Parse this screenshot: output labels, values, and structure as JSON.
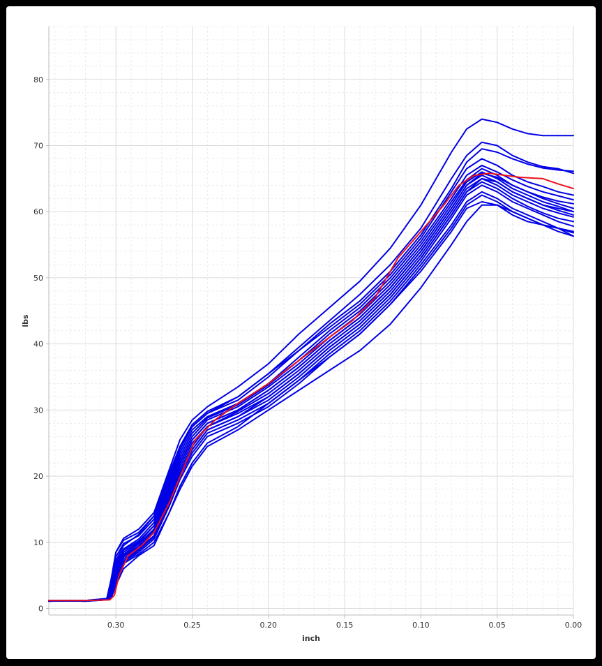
{
  "chart_data": {
    "type": "line",
    "title": "",
    "xlabel": "inch",
    "ylabel": "lbs",
    "x_reversed": true,
    "xlim": [
      0.0,
      0.344
    ],
    "ylim": [
      -1,
      88
    ],
    "x_ticks": [
      0.3,
      0.25,
      0.2,
      0.15,
      0.1,
      0.05,
      0.0
    ],
    "x_tick_labels": [
      "0.30",
      "0.25",
      "0.20",
      "0.15",
      "0.10",
      "0.05",
      "0.00"
    ],
    "y_ticks": [
      0,
      10,
      20,
      30,
      40,
      50,
      60,
      70,
      80
    ],
    "y_tick_labels": [
      "0",
      "10",
      "20",
      "30",
      "40",
      "50",
      "60",
      "70",
      "80"
    ],
    "grid": true,
    "legend": "none",
    "colors": {
      "series": "#0000e6",
      "highlight": "#e8101c"
    },
    "series": [
      {
        "x": [
          0.344,
          0.32,
          0.306,
          0.303,
          0.3,
          0.295,
          0.285,
          0.275,
          0.265,
          0.258,
          0.25,
          0.24,
          0.22,
          0.2,
          0.18,
          0.16,
          0.14,
          0.12,
          0.1,
          0.08,
          0.07,
          0.06,
          0.05,
          0.04,
          0.03,
          0.02,
          0.01,
          0.0
        ],
        "y": [
          1.2,
          1.2,
          1.4,
          4.5,
          8.5,
          10.6,
          12.0,
          14.5,
          21.0,
          25.5,
          28.5,
          30.5,
          33.5,
          37.0,
          41.5,
          45.5,
          49.5,
          54.5,
          61.0,
          69.0,
          72.5,
          74.0,
          73.5,
          72.5,
          71.8,
          71.5,
          71.5,
          71.5
        ]
      },
      {
        "x": [
          0.344,
          0.32,
          0.306,
          0.303,
          0.3,
          0.295,
          0.285,
          0.275,
          0.265,
          0.258,
          0.25,
          0.24,
          0.22,
          0.2,
          0.18,
          0.16,
          0.14,
          0.12,
          0.1,
          0.08,
          0.07,
          0.06,
          0.05,
          0.04,
          0.03,
          0.02,
          0.01,
          0.0
        ],
        "y": [
          1.2,
          1.2,
          1.5,
          4.5,
          8.5,
          10.3,
          11.5,
          14.0,
          20.0,
          24.5,
          27.8,
          29.8,
          32.0,
          35.5,
          39.5,
          43.5,
          47.5,
          52.0,
          57.5,
          65.0,
          68.5,
          70.5,
          70.0,
          68.5,
          67.5,
          66.8,
          66.5,
          65.8
        ]
      },
      {
        "x": [
          0.344,
          0.32,
          0.306,
          0.303,
          0.3,
          0.295,
          0.285,
          0.275,
          0.265,
          0.258,
          0.25,
          0.24,
          0.22,
          0.2,
          0.18,
          0.16,
          0.14,
          0.12,
          0.1,
          0.08,
          0.07,
          0.06,
          0.05,
          0.04,
          0.03,
          0.02,
          0.01,
          0.0
        ],
        "y": [
          1.1,
          1.2,
          1.4,
          3.8,
          7.8,
          9.8,
          11.0,
          13.5,
          19.5,
          24.0,
          27.5,
          29.5,
          31.5,
          35.0,
          39.0,
          43.0,
          46.5,
          51.0,
          56.5,
          63.5,
          67.5,
          69.5,
          69.0,
          68.0,
          67.2,
          66.6,
          66.3,
          66.1
        ]
      },
      {
        "x": [
          0.344,
          0.32,
          0.306,
          0.303,
          0.3,
          0.295,
          0.285,
          0.275,
          0.265,
          0.258,
          0.25,
          0.24,
          0.22,
          0.2,
          0.18,
          0.16,
          0.14,
          0.12,
          0.1,
          0.08,
          0.07,
          0.06,
          0.05,
          0.04,
          0.03,
          0.02,
          0.01,
          0.0
        ],
        "y": [
          1.2,
          1.1,
          1.4,
          3.5,
          7.2,
          9.5,
          11.2,
          14.0,
          20.5,
          24.5,
          27.5,
          29.5,
          32.0,
          35.5,
          39.0,
          42.5,
          46.0,
          50.5,
          56.0,
          63.0,
          66.5,
          68.0,
          67.0,
          65.5,
          64.5,
          63.8,
          63.0,
          62.5
        ]
      },
      {
        "x": [
          0.344,
          0.32,
          0.306,
          0.303,
          0.3,
          0.295,
          0.285,
          0.275,
          0.265,
          0.258,
          0.25,
          0.24,
          0.22,
          0.2,
          0.18,
          0.16,
          0.14,
          0.12,
          0.1,
          0.08,
          0.07,
          0.06,
          0.05,
          0.04,
          0.03,
          0.02,
          0.01,
          0.0
        ],
        "y": [
          1.2,
          1.2,
          1.4,
          3.2,
          6.8,
          9.0,
          10.5,
          13.0,
          19.0,
          23.5,
          27.0,
          29.0,
          31.0,
          34.0,
          38.0,
          42.0,
          45.5,
          50.0,
          55.5,
          62.0,
          65.5,
          67.0,
          66.0,
          64.8,
          63.8,
          63.0,
          62.4,
          61.8
        ]
      },
      {
        "x": [
          0.344,
          0.32,
          0.306,
          0.303,
          0.3,
          0.295,
          0.285,
          0.275,
          0.265,
          0.258,
          0.25,
          0.24,
          0.22,
          0.2,
          0.18,
          0.16,
          0.14,
          0.12,
          0.1,
          0.08,
          0.07,
          0.06,
          0.05,
          0.04,
          0.03,
          0.02,
          0.01,
          0.0
        ],
        "y": [
          1.1,
          1.2,
          1.3,
          3.0,
          6.5,
          8.8,
          10.2,
          12.5,
          18.5,
          23.0,
          26.5,
          28.8,
          30.8,
          33.8,
          37.5,
          41.5,
          45.0,
          49.5,
          55.0,
          61.5,
          64.8,
          66.5,
          65.5,
          64.0,
          63.0,
          62.0,
          61.2,
          60.5
        ]
      },
      {
        "x": [
          0.344,
          0.32,
          0.306,
          0.303,
          0.3,
          0.295,
          0.285,
          0.275,
          0.265,
          0.258,
          0.25,
          0.24,
          0.22,
          0.2,
          0.18,
          0.16,
          0.14,
          0.12,
          0.1,
          0.08,
          0.07,
          0.06,
          0.05,
          0.04,
          0.03,
          0.02,
          0.01,
          0.0
        ],
        "y": [
          1.2,
          1.2,
          1.4,
          2.8,
          6.0,
          8.5,
          10.0,
          12.5,
          18.5,
          22.5,
          26.0,
          28.5,
          30.5,
          33.5,
          37.0,
          41.0,
          44.5,
          49.0,
          54.5,
          61.0,
          64.5,
          66.0,
          65.0,
          63.5,
          62.5,
          61.5,
          60.8,
          60.0
        ]
      },
      {
        "x": [
          0.344,
          0.32,
          0.306,
          0.303,
          0.3,
          0.295,
          0.285,
          0.275,
          0.265,
          0.258,
          0.25,
          0.24,
          0.22,
          0.2,
          0.18,
          0.16,
          0.14,
          0.12,
          0.1,
          0.08,
          0.07,
          0.06,
          0.05,
          0.04,
          0.03,
          0.02,
          0.01,
          0.0
        ],
        "y": [
          1.2,
          1.1,
          1.3,
          2.6,
          5.5,
          8.2,
          9.8,
          12.0,
          18.0,
          22.0,
          25.5,
          28.0,
          30.0,
          33.0,
          36.5,
          40.5,
          44.0,
          48.5,
          54.0,
          60.5,
          64.0,
          65.5,
          64.5,
          63.0,
          62.0,
          61.0,
          60.2,
          59.5
        ]
      },
      {
        "x": [
          0.344,
          0.32,
          0.306,
          0.303,
          0.3,
          0.295,
          0.285,
          0.275,
          0.265,
          0.258,
          0.25,
          0.24,
          0.22,
          0.2,
          0.18,
          0.16,
          0.14,
          0.12,
          0.1,
          0.08,
          0.07,
          0.06,
          0.05,
          0.04,
          0.03,
          0.02,
          0.01,
          0.0
        ],
        "y": [
          1.2,
          1.2,
          1.3,
          2.4,
          5.2,
          8.0,
          9.5,
          11.8,
          17.5,
          21.5,
          25.0,
          27.5,
          29.8,
          32.5,
          36.0,
          40.0,
          43.5,
          48.0,
          53.5,
          60.0,
          63.5,
          65.0,
          64.0,
          62.5,
          61.5,
          60.5,
          59.8,
          59.2
        ]
      },
      {
        "x": [
          0.344,
          0.32,
          0.306,
          0.303,
          0.3,
          0.295,
          0.285,
          0.275,
          0.265,
          0.258,
          0.25,
          0.24,
          0.22,
          0.2,
          0.18,
          0.16,
          0.14,
          0.12,
          0.1,
          0.08,
          0.07,
          0.06,
          0.05,
          0.04,
          0.03,
          0.02,
          0.01,
          0.0
        ],
        "y": [
          1.1,
          1.2,
          1.3,
          2.2,
          4.8,
          7.8,
          9.2,
          11.5,
          17.0,
          21.0,
          24.5,
          27.5,
          29.5,
          32.0,
          35.5,
          39.5,
          43.0,
          47.5,
          53.0,
          59.5,
          63.0,
          64.5,
          63.5,
          62.0,
          60.8,
          59.8,
          59.0,
          58.5
        ]
      },
      {
        "x": [
          0.344,
          0.32,
          0.306,
          0.303,
          0.3,
          0.295,
          0.285,
          0.275,
          0.265,
          0.258,
          0.25,
          0.24,
          0.22,
          0.2,
          0.18,
          0.16,
          0.14,
          0.12,
          0.1,
          0.08,
          0.07,
          0.06,
          0.05,
          0.04,
          0.03,
          0.02,
          0.01,
          0.0
        ],
        "y": [
          1.2,
          1.2,
          1.3,
          2.0,
          4.5,
          7.5,
          9.0,
          11.0,
          16.5,
          20.5,
          24.0,
          27.0,
          29.0,
          31.5,
          35.0,
          39.0,
          42.5,
          47.0,
          52.5,
          59.0,
          62.5,
          64.0,
          63.0,
          61.5,
          60.5,
          59.5,
          58.5,
          57.8
        ]
      },
      {
        "x": [
          0.344,
          0.32,
          0.306,
          0.303,
          0.3,
          0.295,
          0.285,
          0.275,
          0.265,
          0.258,
          0.25,
          0.24,
          0.22,
          0.2,
          0.18,
          0.16,
          0.14,
          0.12,
          0.1,
          0.08,
          0.07,
          0.06,
          0.05,
          0.04,
          0.03,
          0.02,
          0.01,
          0.0
        ],
        "y": [
          1.2,
          1.1,
          1.3,
          1.8,
          4.0,
          7.2,
          8.8,
          10.8,
          16.0,
          20.0,
          23.5,
          26.5,
          28.5,
          31.0,
          34.5,
          38.5,
          42.0,
          46.5,
          52.0,
          58.0,
          61.5,
          63.0,
          62.0,
          60.5,
          59.5,
          58.5,
          57.5,
          56.8
        ]
      },
      {
        "x": [
          0.344,
          0.32,
          0.306,
          0.303,
          0.3,
          0.295,
          0.285,
          0.275,
          0.265,
          0.258,
          0.25,
          0.24,
          0.22,
          0.2,
          0.18,
          0.16,
          0.14,
          0.12,
          0.1,
          0.08,
          0.07,
          0.06,
          0.05,
          0.04,
          0.03,
          0.02,
          0.01,
          0.0
        ],
        "y": [
          1.2,
          1.2,
          1.3,
          1.7,
          3.8,
          7.0,
          8.5,
          10.5,
          15.5,
          19.5,
          23.0,
          26.0,
          28.0,
          30.5,
          34.0,
          38.0,
          41.5,
          46.0,
          51.5,
          57.5,
          61.0,
          62.5,
          61.5,
          60.0,
          59.0,
          58.0,
          57.0,
          56.3
        ]
      },
      {
        "x": [
          0.344,
          0.32,
          0.306,
          0.303,
          0.3,
          0.295,
          0.285,
          0.275,
          0.265,
          0.258,
          0.25,
          0.24,
          0.22,
          0.2,
          0.18,
          0.16,
          0.14,
          0.12,
          0.1,
          0.08,
          0.07,
          0.06,
          0.05,
          0.04,
          0.03,
          0.02,
          0.01,
          0.0
        ],
        "y": [
          1.1,
          1.2,
          1.3,
          1.6,
          3.5,
          6.8,
          8.2,
          10.0,
          14.5,
          18.0,
          21.5,
          24.5,
          27.0,
          30.0,
          33.0,
          36.0,
          39.0,
          43.0,
          48.5,
          55.0,
          58.5,
          61.0,
          61.0,
          60.0,
          59.0,
          58.0,
          57.5,
          56.3
        ]
      },
      {
        "x": [
          0.344,
          0.32,
          0.306,
          0.303,
          0.3,
          0.295,
          0.285,
          0.275,
          0.265,
          0.258,
          0.25,
          0.24,
          0.22,
          0.2,
          0.18,
          0.16,
          0.14,
          0.12,
          0.1,
          0.08,
          0.07,
          0.06,
          0.05,
          0.04,
          0.03,
          0.02,
          0.01,
          0.0
        ],
        "y": [
          1.2,
          1.2,
          1.3,
          2.0,
          4.2,
          7.0,
          8.8,
          11.0,
          16.5,
          20.5,
          24.0,
          27.0,
          29.0,
          32.0,
          35.5,
          39.5,
          43.0,
          47.5,
          53.0,
          59.5,
          63.0,
          65.0,
          64.5,
          63.0,
          62.0,
          61.0,
          60.5,
          60.0
        ]
      },
      {
        "x": [
          0.344,
          0.32,
          0.306,
          0.303,
          0.3,
          0.295,
          0.285,
          0.275,
          0.265,
          0.258,
          0.25,
          0.24,
          0.22,
          0.2,
          0.18,
          0.16,
          0.14,
          0.12,
          0.1,
          0.08,
          0.07,
          0.06,
          0.05,
          0.04,
          0.03,
          0.02,
          0.01,
          0.0
        ],
        "y": [
          1.2,
          1.1,
          1.4,
          2.5,
          5.0,
          7.8,
          9.5,
          11.8,
          17.5,
          22.0,
          25.5,
          28.0,
          30.0,
          33.0,
          36.5,
          40.5,
          44.0,
          48.5,
          54.0,
          60.5,
          64.0,
          65.8,
          65.2,
          64.0,
          63.0,
          62.2,
          61.6,
          61.2
        ]
      },
      {
        "x": [
          0.344,
          0.32,
          0.306,
          0.303,
          0.3,
          0.295,
          0.285,
          0.275,
          0.265,
          0.258,
          0.25,
          0.24,
          0.22,
          0.2,
          0.18,
          0.16,
          0.14,
          0.12,
          0.1,
          0.08,
          0.07,
          0.06,
          0.05,
          0.04,
          0.03,
          0.02,
          0.01,
          0.0
        ],
        "y": [
          1.2,
          1.2,
          1.4,
          1.8,
          3.5,
          6.0,
          8.0,
          9.5,
          14.5,
          18.5,
          22.0,
          25.0,
          27.5,
          31.0,
          34.5,
          38.0,
          41.5,
          46.0,
          51.0,
          57.0,
          60.5,
          61.5,
          61.0,
          59.5,
          58.5,
          58.0,
          57.5,
          57.0
        ]
      },
      {
        "x": [
          0.344,
          0.32,
          0.304,
          0.301,
          0.298,
          0.292,
          0.283,
          0.275,
          0.265,
          0.256,
          0.248,
          0.235,
          0.22,
          0.2,
          0.18,
          0.16,
          0.145,
          0.13,
          0.115,
          0.1,
          0.085,
          0.075,
          0.065,
          0.055,
          0.045,
          0.035,
          0.02,
          0.01,
          0.0
        ],
        "y": [
          1.2,
          1.2,
          1.3,
          2.0,
          5.0,
          8.0,
          9.5,
          11.5,
          16.0,
          21.0,
          25.5,
          28.5,
          31.0,
          34.0,
          37.5,
          41.0,
          43.5,
          47.0,
          53.0,
          57.0,
          61.0,
          64.0,
          65.5,
          65.8,
          65.5,
          65.2,
          65.0,
          64.2,
          63.5
        ]
      }
    ]
  }
}
